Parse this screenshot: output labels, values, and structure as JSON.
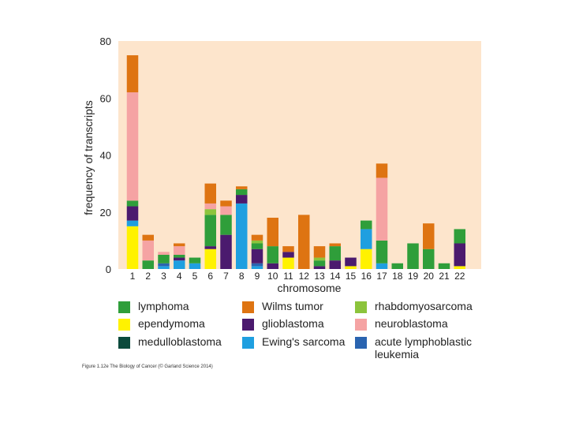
{
  "chart_data": {
    "type": "bar",
    "stacked": true,
    "xlabel": "chromosome",
    "ylabel": "frequency of transcripts",
    "ylim": [
      0,
      80
    ],
    "yticks": [
      0,
      20,
      40,
      60,
      80
    ],
    "categories": [
      "1",
      "2",
      "3",
      "4",
      "5",
      "6",
      "7",
      "8",
      "9",
      "10",
      "11",
      "12",
      "13",
      "14",
      "15",
      "16",
      "17",
      "18",
      "19",
      "20",
      "21",
      "22"
    ],
    "series": [
      {
        "name": "ependymoma",
        "color": "#fff200",
        "values": [
          15,
          0,
          0,
          0,
          0,
          7,
          0,
          0,
          0,
          0,
          4,
          0,
          0,
          0,
          1,
          7,
          0,
          0,
          0,
          0,
          0,
          1
        ]
      },
      {
        "name": "Ewing's sarcoma",
        "color": "#1f9fe0",
        "values": [
          2,
          0,
          1,
          3,
          2,
          0,
          0,
          23,
          1,
          0,
          0,
          0,
          0,
          0,
          0,
          7,
          2,
          0,
          0,
          0,
          0,
          0
        ]
      },
      {
        "name": "acute lymphoblastic leukemia",
        "color": "#2a64b0",
        "values": [
          0,
          0,
          1,
          0,
          0,
          0,
          0,
          0,
          1,
          0,
          0,
          0,
          0,
          0,
          0,
          0,
          0,
          0,
          0,
          0,
          0,
          0
        ]
      },
      {
        "name": "glioblastoma",
        "color": "#4b1a6e",
        "values": [
          5,
          0,
          0,
          1,
          0,
          1,
          12,
          3,
          5,
          2,
          2,
          0,
          1,
          3,
          3,
          0,
          0,
          0,
          0,
          0,
          0,
          8
        ]
      },
      {
        "name": "medulloblastoma",
        "color": "#0b4a3c",
        "values": [
          0,
          0,
          0,
          0,
          0,
          0,
          0,
          0,
          0,
          0,
          0,
          0,
          0,
          0,
          0,
          0,
          0,
          0,
          0,
          0,
          0,
          0
        ]
      },
      {
        "name": "lymphoma",
        "color": "#2f9e3a",
        "values": [
          2,
          3,
          3,
          1,
          2,
          11,
          7,
          2,
          2,
          6,
          0,
          0,
          2,
          5,
          0,
          3,
          8,
          2,
          9,
          7,
          2,
          5
        ]
      },
      {
        "name": "rhabdomyosarcoma",
        "color": "#8cc43c",
        "values": [
          0,
          0,
          0,
          0,
          0,
          2,
          0,
          0,
          1,
          0,
          0,
          0,
          1,
          0,
          0,
          0,
          0,
          0,
          0,
          0,
          0,
          0
        ]
      },
      {
        "name": "neuroblastoma",
        "color": "#f5a3a3",
        "values": [
          38,
          7,
          1,
          3,
          0,
          2,
          3,
          0,
          0,
          0,
          0,
          0,
          0,
          0,
          0,
          0,
          22,
          0,
          0,
          0,
          0,
          0
        ]
      },
      {
        "name": "Wilms tumor",
        "color": "#de7412",
        "values": [
          13,
          2,
          0,
          1,
          0,
          7,
          2,
          1,
          2,
          10,
          2,
          19,
          4,
          1,
          0,
          0,
          5,
          0,
          0,
          9,
          0,
          0
        ]
      }
    ],
    "legend": [
      {
        "label": "lymphoma",
        "color": "#2f9e3a"
      },
      {
        "label": "Wilms tumor",
        "color": "#de7412"
      },
      {
        "label": "rhabdomyosarcoma",
        "color": "#8cc43c"
      },
      {
        "label": "ependymoma",
        "color": "#fff200"
      },
      {
        "label": "glioblastoma",
        "color": "#4b1a6e"
      },
      {
        "label": "neuroblastoma",
        "color": "#f5a3a3"
      },
      {
        "label": "medulloblastoma",
        "color": "#0b4a3c"
      },
      {
        "label": "Ewing's sarcoma",
        "color": "#1f9fe0"
      },
      {
        "label": "acute lymphoblastic leukemia",
        "color": "#2a64b0"
      }
    ],
    "legend_position": "bottom",
    "plot_background": "#fde5cc"
  },
  "caption": "Figure 1.12e The Biology of Cancer (© Garland Science 2014)"
}
